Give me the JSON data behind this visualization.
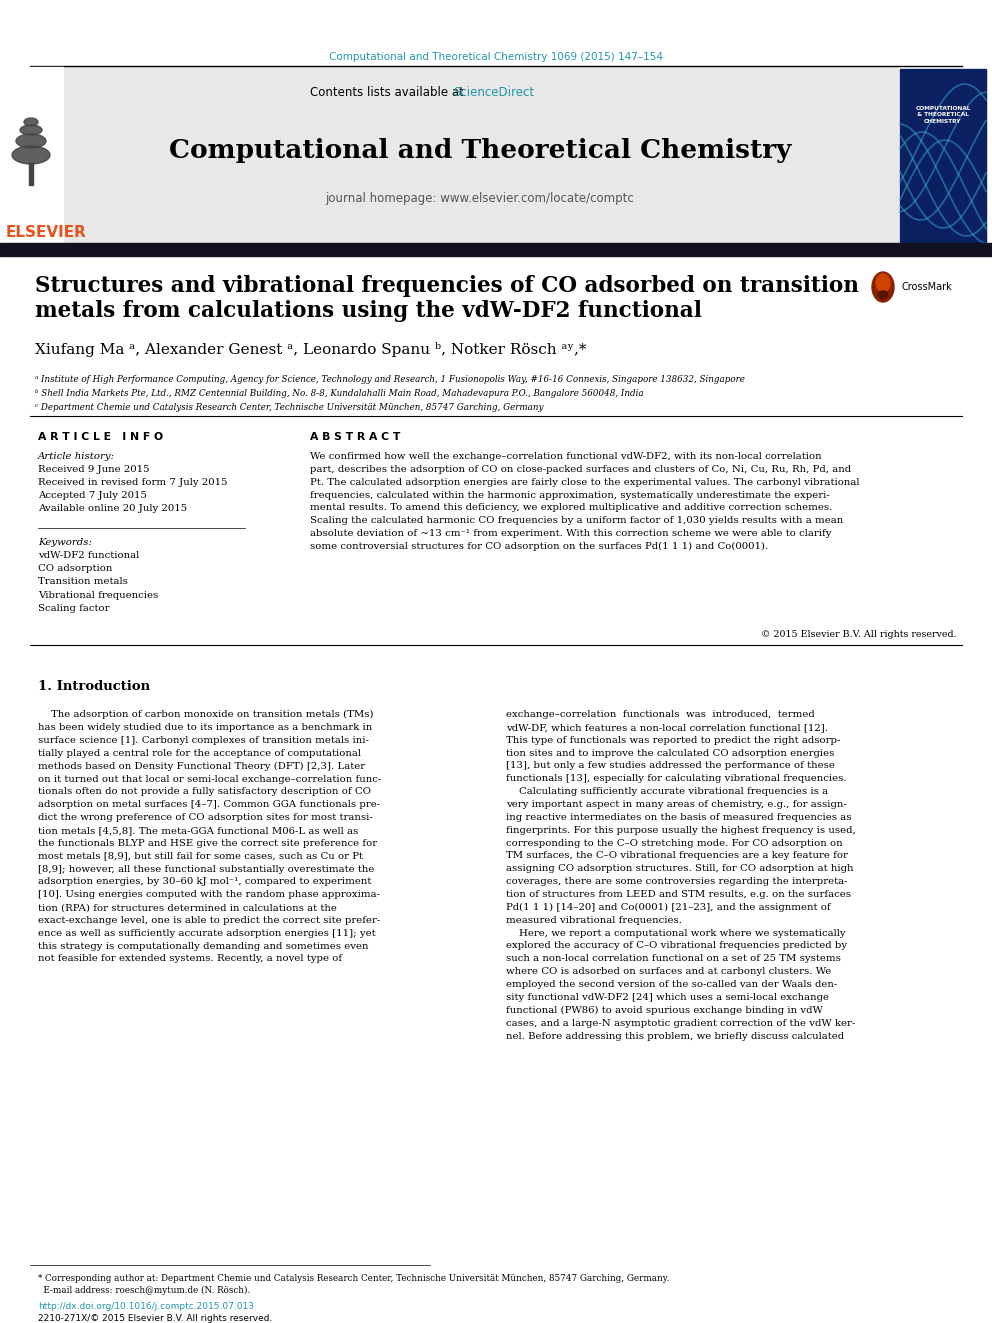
{
  "journal_ref": "Computational and Theoretical Chemistry 1069 (2015) 147–154",
  "journal_ref_color": "#2196a8",
  "journal_name": "Computational and Theoretical Chemistry",
  "contents_text": "Contents lists available at ",
  "sciencedirect_text": "ScienceDirect",
  "sciencedirect_color": "#2196a8",
  "homepage_text": "journal homepage: www.elsevier.com/locate/comptc",
  "homepage_color": "#555555",
  "article_title_line1": "Structures and vibrational frequencies of CO adsorbed on transition",
  "article_title_line2": "metals from calculations using the vdW-DF2 functional",
  "authors": "Xiufang Ma ᵃ, Alexander Genest ᵃ, Leonardo Spanu ᵇ, Notker Rösch ᵃʸ,*",
  "affil_a": "ᵃ Institute of High Performance Computing, Agency for Science, Technology and Research, 1 Fusionopolis Way, #16-16 Connexis, Singapore 138632, Singapore",
  "affil_b": "ᵇ Shell India Markets Pte, Ltd., RMZ Centennial Building, No. 8-8, Kundalahalli Main Road, Mahadevapura P.O., Bangalore 560048, India",
  "affil_c": "ᶜ Department Chemie und Catalysis Research Center, Technische Universität München, 85747 Garching, Germany",
  "article_info_title": "A R T I C L E   I N F O",
  "abstract_title": "A B S T R A C T",
  "article_history_title": "Article history:",
  "article_history": "Received 9 June 2015\nReceived in revised form 7 July 2015\nAccepted 7 July 2015\nAvailable online 20 July 2015",
  "keywords_title": "Keywords:",
  "keywords": "vdW-DF2 functional\nCO adsorption\nTransition metals\nVibrational frequencies\nScaling factor",
  "abstract_text_lines": [
    "We confirmed how well the exchange–correlation functional vdW-DF2, with its non-local correlation",
    "part, describes the adsorption of CO on close-packed surfaces and clusters of Co, Ni, Cu, Ru, Rh, Pd, and",
    "Pt. The calculated adsorption energies are fairly close to the experimental values. The carbonyl vibrational",
    "frequencies, calculated within the harmonic approximation, systematically underestimate the experi-",
    "mental results. To amend this deficiency, we explored multiplicative and additive correction schemes.",
    "Scaling the calculated harmonic CO frequencies by a uniform factor of 1,030 yields results with a mean",
    "absolute deviation of ~13 cm⁻¹ from experiment. With this correction scheme we were able to clarify",
    "some controversial structures for CO adsorption on the surfaces Pd(1 1 1) and Co(0001)."
  ],
  "copyright_text": "© 2015 Elsevier B.V. All rights reserved.",
  "intro_title": "1. Introduction",
  "intro_left_lines": [
    "    The adsorption of carbon monoxide on transition metals (TMs)",
    "has been widely studied due to its importance as a benchmark in",
    "surface science [1]. Carbonyl complexes of transition metals ini-",
    "tially played a central role for the acceptance of computational",
    "methods based on Density Functional Theory (DFT) [2,3]. Later",
    "on it turned out that local or semi-local exchange–correlation func-",
    "tionals often do not provide a fully satisfactory description of CO",
    "adsorption on metal surfaces [4–7]. Common GGA functionals pre-",
    "dict the wrong preference of CO adsorption sites for most transi-",
    "tion metals [4,5,8]. The meta-GGA functional M06-L as well as",
    "the functionals BLYP and HSE give the correct site preference for",
    "most metals [8,9], but still fail for some cases, such as Cu or Pt",
    "[8,9]; however, all these functional substantially overestimate the",
    "adsorption energies, by 30–60 kJ mol⁻¹, compared to experiment",
    "[10]. Using energies computed with the random phase approxima-",
    "tion (RPA) for structures determined in calculations at the",
    "exact-exchange level, one is able to predict the correct site prefer-",
    "ence as well as sufficiently accurate adsorption energies [11]; yet",
    "this strategy is computationally demanding and sometimes even",
    "not feasible for extended systems. Recently, a novel type of"
  ],
  "intro_right_lines": [
    "exchange–correlation  functionals  was  introduced,  termed",
    "vdW-DF, which features a non-local correlation functional [12].",
    "This type of functionals was reported to predict the right adsorp-",
    "tion sites and to improve the calculated CO adsorption energies",
    "[13], but only a few studies addressed the performance of these",
    "functionals [13], especially for calculating vibrational frequencies.",
    "    Calculating sufficiently accurate vibrational frequencies is a",
    "very important aspect in many areas of chemistry, e.g., for assign-",
    "ing reactive intermediates on the basis of measured frequencies as",
    "fingerprints. For this purpose usually the highest frequency is used,",
    "corresponding to the C–O stretching mode. For CO adsorption on",
    "TM surfaces, the C–O vibrational frequencies are a key feature for",
    "assigning CO adsorption structures. Still, for CO adsorption at high",
    "coverages, there are some controversies regarding the interpreta-",
    "tion of structures from LEED and STM results, e.g. on the surfaces",
    "Pd(1 1 1) [14–20] and Co(0001) [21–23], and the assignment of",
    "measured vibrational frequencies.",
    "    Here, we report a computational work where we systematically",
    "explored the accuracy of C–O vibrational frequencies predicted by",
    "such a non-local correlation functional on a set of 25 TM systems",
    "where CO is adsorbed on surfaces and at carbonyl clusters. We",
    "employed the second version of the so-called van der Waals den-",
    "sity functional vdW-DF2 [24] which uses a semi-local exchange",
    "functional (PW86) to avoid spurious exchange binding in vdW",
    "cases, and a large-N asymptotic gradient correction of the vdW ker-",
    "nel. Before addressing this problem, we briefly discuss calculated"
  ],
  "footer_line1": "* Corresponding author at: Department Chemie und Catalysis Research Center, Technische Universität München, 85747 Garching, Germany.",
  "footer_line2": "  E-mail address: roesch@mytum.de (N. Rösch).",
  "doi_text": "http://dx.doi.org/10.1016/j.comptc.2015.07.013",
  "doi_color": "#2196a8",
  "issn_text": "2210-271X/© 2015 Elsevier B.V. All rights reserved.",
  "header_bg": "#e8e8e8",
  "top_bar_color": "#111133",
  "elsevier_color": "#e8521a",
  "page_bg": "#ffffff",
  "text_color": "#000000",
  "link_color": "#2196a8"
}
